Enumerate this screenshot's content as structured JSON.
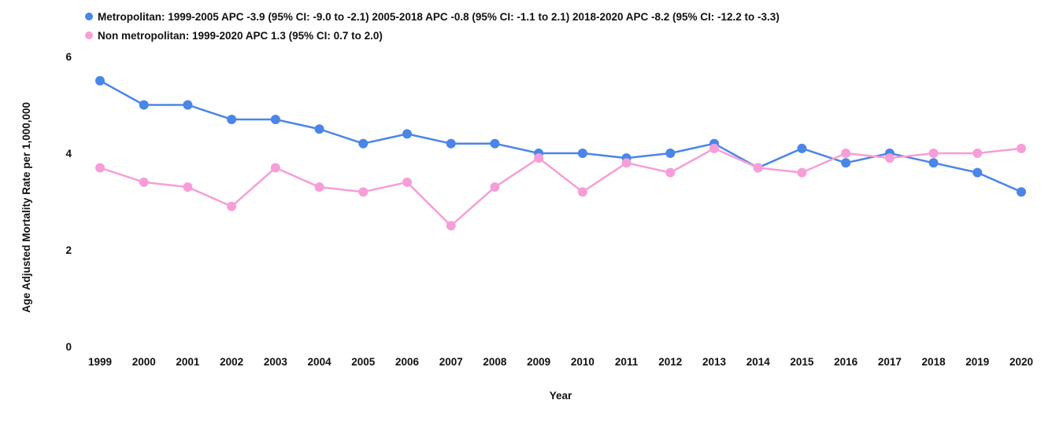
{
  "chart_data": {
    "type": "line",
    "title": "",
    "xlabel": "Year",
    "ylabel": "Age Adjusted Mortality Rate per 1,000,000",
    "ylim": [
      0,
      6
    ],
    "yticks": [
      0,
      2,
      4,
      6
    ],
    "grid": false,
    "legend_position": "top-left",
    "categories": [
      "1999",
      "2000",
      "2001",
      "2002",
      "2003",
      "2004",
      "2005",
      "2006",
      "2007",
      "2008",
      "2009",
      "2010",
      "2011",
      "2012",
      "2013",
      "2014",
      "2015",
      "2016",
      "2017",
      "2018",
      "2019",
      "2020"
    ],
    "series": [
      {
        "name": "Metropolitan: 1999-2005 APC -3.9 (95% CI: -9.0 to -2.1) 2005-2018 APC -0.8 (95% CI: -1.1 to 2.1) 2018-2020 APC -8.2 (95% CI: -12.2 to -3.3)",
        "color": "#4a86e8",
        "values": [
          5.5,
          5.0,
          5.0,
          4.7,
          4.7,
          4.5,
          4.2,
          4.4,
          4.2,
          4.2,
          4.0,
          4.0,
          3.9,
          4.0,
          4.2,
          3.7,
          4.1,
          3.8,
          4.0,
          3.8,
          3.6,
          3.2
        ]
      },
      {
        "name": "Non metropolitan: 1999-2020 APC 1.3 (95% CI: 0.7 to 2.0)",
        "color": "#f79ed8",
        "values": [
          3.7,
          3.4,
          3.3,
          2.9,
          3.7,
          3.3,
          3.2,
          3.4,
          2.5,
          3.3,
          3.9,
          3.2,
          3.8,
          3.6,
          4.1,
          3.7,
          3.6,
          4.0,
          3.9,
          4.0,
          4.0,
          4.1
        ]
      }
    ]
  }
}
